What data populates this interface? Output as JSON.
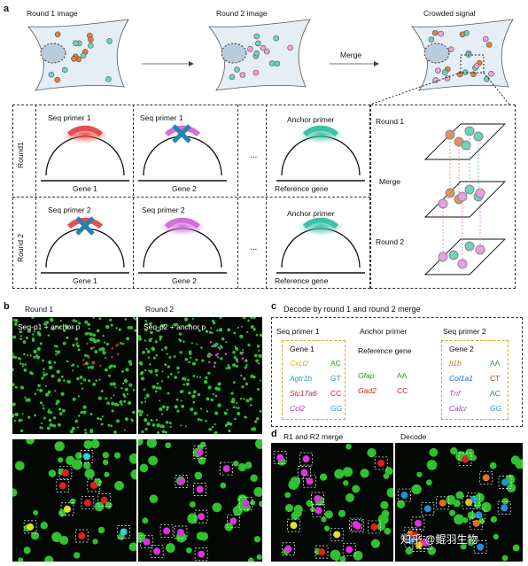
{
  "panel_a": {
    "letter": "a",
    "round1_image_label": "Round 1 image",
    "round2_image_label": "Round 2 image",
    "crowded_label": "Crowded signal",
    "merge_label": "Merge",
    "round1_row_label": "Round1",
    "round2_row_label": "Round 2",
    "seq_primer_1": "Seq primer 1",
    "seq_primer_2": "Seq primer 2",
    "anchor_primer": "Anchor primer",
    "gene_1": "Gene 1",
    "gene_2": "Gene 2",
    "reference_gene": "Reference gene",
    "ellipsis": "...",
    "stack_round1": "Round 1",
    "stack_merge": "Merge",
    "stack_round2": "Round 2"
  },
  "panel_b": {
    "letter": "b",
    "round1": "Round 1",
    "round2": "Round 2",
    "overlay1": "Seq-p1 + anchor p",
    "overlay2": "Seq-p2 + anchor p"
  },
  "panel_c": {
    "letter": "c",
    "title": "Decode by round 1 and round 2 merge",
    "seq_primer_1": "Seq primer 1",
    "anchor_primer": "Anchor primer",
    "seq_primer_2": "Seq primer 2",
    "gene1_header": "Gene 1",
    "reference_header": "Reference gene",
    "gene2_header": "Gene 2",
    "gene1_rows": [
      {
        "gene": "Cxcl2",
        "code": "AC",
        "color": "#d4b000"
      },
      {
        "gene": "Agtr1b",
        "code": "GT",
        "color": "#1aa0c8"
      },
      {
        "gene": "Slc17a6",
        "code": "CC",
        "color": "#d02020"
      },
      {
        "gene": "Ccl2",
        "code": "GG",
        "color": "#b030c0"
      }
    ],
    "reference_rows": [
      {
        "gene": "Gfap",
        "code": "AA",
        "color": "#2a9a2a"
      },
      {
        "gene": "Gad2",
        "code": "CC",
        "color": "#d02020"
      }
    ],
    "gene2_rows": [
      {
        "gene": "Il1b",
        "code": "AA",
        "color": "#d07020"
      },
      {
        "gene": "Col1a1",
        "code": "CT",
        "color": "#1a6ac8"
      },
      {
        "gene": "Tnf",
        "code": "AC",
        "color": "#b030c0"
      },
      {
        "gene": "Calcr",
        "code": "GG",
        "color": "#9040c0"
      }
    ],
    "code_colors": {
      "AA": "#2a9a2a",
      "AC": "#2a9a2a",
      "GT": "#1aa0c8",
      "CC": "#d02020",
      "GG": "#1aa0c8",
      "CT": "#d02020"
    }
  },
  "panel_d": {
    "letter": "d",
    "merge_label": "R1 and R2 merge",
    "decode_label": "Decode"
  },
  "watermark": "知乎 @鲲羽生物"
}
